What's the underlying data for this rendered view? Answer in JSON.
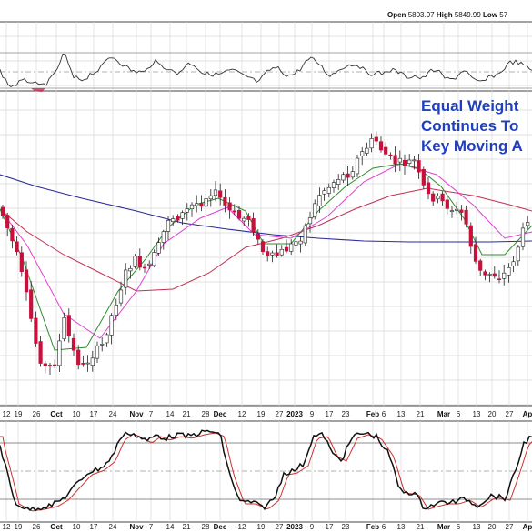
{
  "header": {
    "open_label": "Open",
    "open_value": "5803.97",
    "high_label": "High",
    "high_value": "5849.99",
    "low_label": "Low",
    "low_value": "57"
  },
  "annotation": {
    "line1": "Equal Weight",
    "line2": "Continues To",
    "line3": "Key Moving A"
  },
  "colors": {
    "candle_down": "#c8103c",
    "candle_up": "#ffffff",
    "ma_short": "#2e8b2e",
    "ma_mid": "#e040d0",
    "ma_50": "#c03050",
    "ma_200": "#2a2a9a",
    "stoch_fast": "#111111",
    "stoch_slow": "#d03030",
    "rsi": "#333333",
    "grid": "#d8d8d8",
    "annotation": "#1f3fbf"
  },
  "chart_data": [
    {
      "type": "line",
      "panel": "rsi-indicator",
      "overbought_line": true,
      "oversold_line": true,
      "midline": true
    },
    {
      "type": "candlestick",
      "panel": "price",
      "x_tick_labels": [
        "12",
        "19",
        "26",
        "Oct",
        "10",
        "17",
        "24",
        "Nov",
        "7",
        "14",
        "21",
        "28",
        "Dec",
        "12",
        "19",
        "27",
        "2023",
        "9",
        "17",
        "23",
        "Feb",
        "6",
        "13",
        "21",
        "Mar",
        "6",
        "13",
        "20",
        "27",
        "Ap"
      ],
      "overlays": [
        "short moving average",
        "mid moving average",
        "50-day moving average",
        "200-day moving average"
      ]
    },
    {
      "type": "line",
      "panel": "stochastic",
      "series": [
        "%K",
        "%D"
      ],
      "x_tick_labels": [
        "12",
        "19",
        "26",
        "Oct",
        "10",
        "17",
        "24",
        "Nov",
        "7",
        "14",
        "21",
        "28",
        "Dec",
        "12",
        "19",
        "27",
        "2023",
        "9",
        "17",
        "23",
        "Feb",
        "6",
        "13",
        "21",
        "Mar",
        "6",
        "13",
        "20",
        "27",
        "Ap"
      ]
    }
  ]
}
